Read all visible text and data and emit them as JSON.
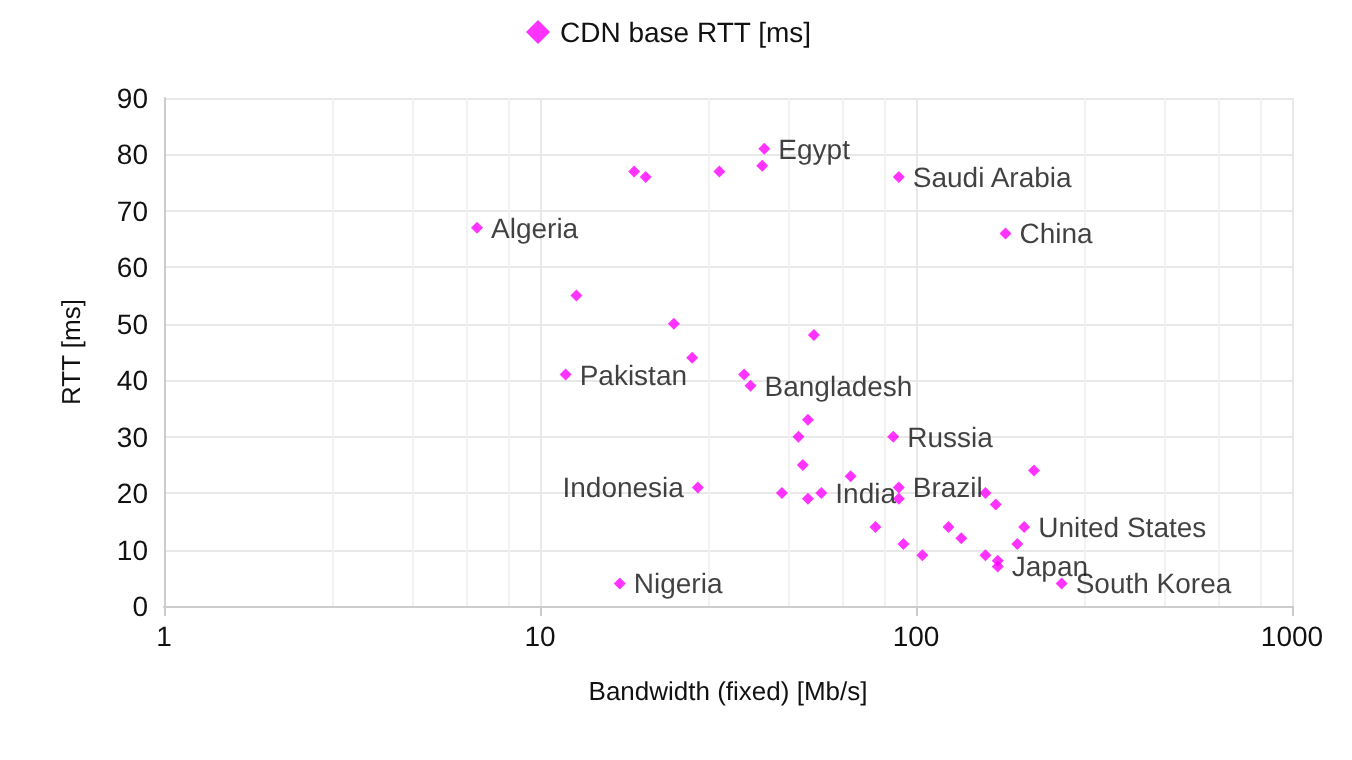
{
  "chart_data": {
    "type": "scatter",
    "xlabel": "Bandwidth (fixed) [Mb/s]",
    "ylabel": "RTT [ms]",
    "log": "x",
    "xlim": [
      1,
      1000
    ],
    "xticks": [
      1,
      10,
      100,
      1000
    ],
    "ylim": [
      0,
      90
    ],
    "yticks": [
      0,
      10,
      20,
      30,
      40,
      50,
      60,
      70,
      80,
      90
    ],
    "grid": true,
    "legend": "top",
    "marker": "diamond",
    "x": [
      6.8,
      17.8,
      19.1,
      30,
      39,
      39.5,
      90,
      173,
      12.5,
      22.7,
      25.4,
      53.5,
      11.7,
      34.9,
      36.3,
      87,
      51.6,
      48.7,
      50,
      44,
      26.3,
      51.6,
      56,
      67,
      90,
      90,
      78,
      92.6,
      104,
      122,
      132,
      153,
      163,
      206,
      194,
      186,
      153,
      165,
      165,
      244,
      16.3
    ],
    "series": [
      {
        "name": "CDN base RTT [ms]",
        "color": "#ff00ff",
        "values": [
          67,
          77,
          76,
          77,
          78,
          81,
          76,
          66,
          55,
          50,
          44,
          48,
          41,
          41,
          39,
          30,
          33,
          30,
          25,
          20,
          21,
          19,
          20,
          23,
          21,
          19,
          14,
          11,
          9,
          14,
          12,
          20,
          18,
          24,
          14,
          11,
          9,
          8,
          7,
          4,
          4
        ],
        "value_labels": [
          "Algeria",
          null,
          null,
          null,
          null,
          "Egypt",
          "Saudi Arabia",
          "China",
          null,
          null,
          null,
          null,
          "Pakistan",
          null,
          "Bangladesh",
          "Russia",
          null,
          null,
          null,
          null,
          "Indonesia",
          null,
          "India",
          null,
          "Brazil",
          null,
          null,
          null,
          null,
          null,
          null,
          null,
          null,
          null,
          "United States",
          null,
          null,
          null,
          "Japan",
          "South Korea",
          "Nigeria"
        ]
      }
    ]
  }
}
